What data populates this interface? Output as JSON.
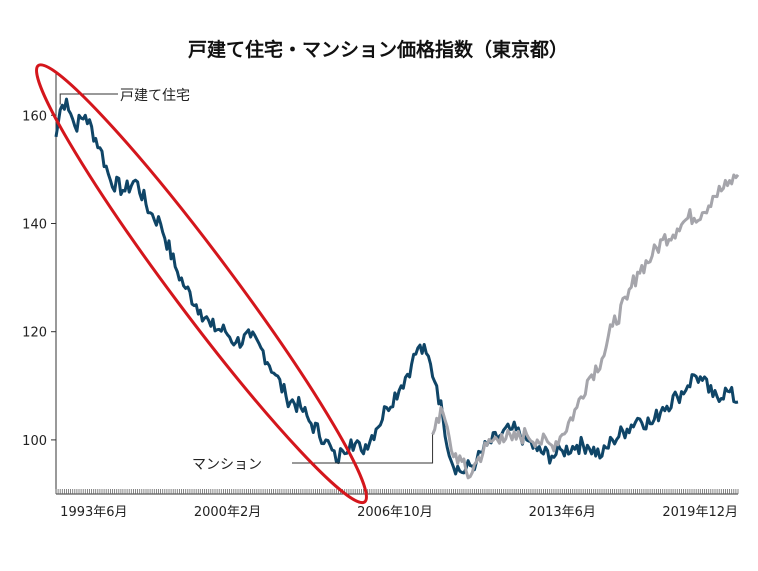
{
  "chart_data": {
    "type": "line",
    "title": "戸建て住宅・マンション価格指数（東京都）",
    "xlabel": "",
    "ylabel": "",
    "ylim": [
      90,
      168
    ],
    "yticks": [
      100,
      120,
      140,
      160
    ],
    "x_range": [
      "1993-04",
      "2020-06"
    ],
    "xticks": [
      {
        "label": "1993年6月",
        "date": "1993-06"
      },
      {
        "label": "2000年2月",
        "date": "2000-02"
      },
      {
        "label": "2006年10月",
        "date": "2006-10"
      },
      {
        "label": "2013年6月",
        "date": "2013-06"
      },
      {
        "label": "2019年12月",
        "date": "2019-12"
      }
    ],
    "grid": false,
    "legend": "none",
    "series": [
      {
        "name": "戸建て住宅",
        "color": "#0f4567",
        "points": [
          [
            "1993-04",
            156
          ],
          [
            "1993-06",
            161
          ],
          [
            "1993-09",
            163
          ],
          [
            "1994-01",
            158
          ],
          [
            "1994-06",
            160
          ],
          [
            "1995-01",
            154
          ],
          [
            "1995-06",
            148
          ],
          [
            "1996-01",
            146
          ],
          [
            "1996-06",
            148
          ],
          [
            "1997-01",
            142
          ],
          [
            "1997-06",
            140
          ],
          [
            "1998-01",
            132
          ],
          [
            "1998-06",
            128
          ],
          [
            "1999-01",
            124
          ],
          [
            "1999-06",
            121
          ],
          [
            "2000-01",
            120
          ],
          [
            "2000-06",
            118
          ],
          [
            "2001-01",
            119
          ],
          [
            "2001-06",
            117
          ],
          [
            "2002-01",
            112
          ],
          [
            "2002-06",
            108
          ],
          [
            "2003-01",
            106
          ],
          [
            "2003-06",
            103
          ],
          [
            "2004-01",
            100
          ],
          [
            "2004-06",
            96
          ],
          [
            "2004-09",
            98
          ],
          [
            "2005-01",
            100
          ],
          [
            "2005-06",
            98
          ],
          [
            "2006-01",
            102
          ],
          [
            "2006-06",
            106
          ],
          [
            "2007-01",
            110
          ],
          [
            "2007-06",
            114
          ],
          [
            "2007-09",
            117
          ],
          [
            "2008-01",
            116
          ],
          [
            "2008-06",
            110
          ],
          [
            "2008-09",
            104
          ],
          [
            "2009-01",
            96
          ],
          [
            "2009-06",
            94
          ],
          [
            "2010-01",
            96
          ],
          [
            "2010-06",
            99
          ],
          [
            "2011-01",
            101
          ],
          [
            "2011-06",
            102
          ],
          [
            "2012-01",
            100
          ],
          [
            "2012-06",
            98
          ],
          [
            "2013-01",
            97
          ],
          [
            "2013-06",
            98
          ],
          [
            "2014-01",
            99
          ],
          [
            "2014-06",
            99
          ],
          [
            "2015-01",
            97
          ],
          [
            "2015-06",
            100
          ],
          [
            "2016-01",
            102
          ],
          [
            "2016-06",
            104
          ],
          [
            "2017-01",
            103
          ],
          [
            "2017-06",
            106
          ],
          [
            "2018-01",
            108
          ],
          [
            "2018-06",
            110
          ],
          [
            "2018-09",
            112
          ],
          [
            "2019-01",
            111
          ],
          [
            "2019-06",
            108
          ],
          [
            "2020-01",
            109
          ],
          [
            "2020-06",
            107
          ]
        ]
      },
      {
        "name": "マンション",
        "color": "#a5a5ab",
        "points": [
          [
            "2008-04",
            101
          ],
          [
            "2008-06",
            104
          ],
          [
            "2008-09",
            105
          ],
          [
            "2009-01",
            98
          ],
          [
            "2009-06",
            96
          ],
          [
            "2009-09",
            93
          ],
          [
            "2010-01",
            96
          ],
          [
            "2010-06",
            99
          ],
          [
            "2011-01",
            101
          ],
          [
            "2011-06",
            100
          ],
          [
            "2012-01",
            101
          ],
          [
            "2012-06",
            100
          ],
          [
            "2013-01",
            99
          ],
          [
            "2013-06",
            101
          ],
          [
            "2014-01",
            106
          ],
          [
            "2014-06",
            111
          ],
          [
            "2015-01",
            115
          ],
          [
            "2015-06",
            121
          ],
          [
            "2016-01",
            126
          ],
          [
            "2016-06",
            131
          ],
          [
            "2017-01",
            134
          ],
          [
            "2017-06",
            137
          ],
          [
            "2018-01",
            139
          ],
          [
            "2018-06",
            141
          ],
          [
            "2019-01",
            142
          ],
          [
            "2019-06",
            145
          ],
          [
            "2020-01",
            147
          ],
          [
            "2020-06",
            149
          ]
        ]
      }
    ],
    "annotations": [
      {
        "text": "戸建て住宅",
        "points_to": [
          "1993-06",
          162
        ]
      },
      {
        "text": "マンション",
        "points_to": [
          "2008-04",
          101
        ]
      }
    ],
    "highlight": {
      "shape": "ellipse",
      "color": "#d4161c",
      "from": [
        "1993-04",
        165
      ],
      "to": [
        "2005-01",
        92
      ]
    }
  }
}
